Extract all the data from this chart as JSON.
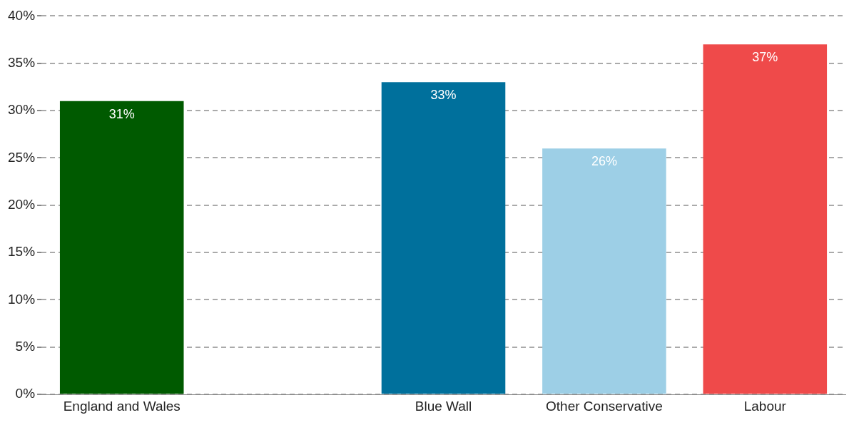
{
  "chart_data": {
    "type": "bar",
    "categories": [
      "England and Wales",
      null,
      "Blue Wall",
      "Other Conservative",
      "Labour"
    ],
    "values": [
      31,
      null,
      33,
      26,
      37
    ],
    "colors": [
      "#005a00",
      "#ffffff",
      "#00709c",
      "#9dcfe6",
      "#ef4a4a"
    ],
    "ylim": [
      0,
      40
    ],
    "yticks": [
      {
        "value": 0,
        "label": "0%"
      },
      {
        "value": 5,
        "label": "5%"
      },
      {
        "value": 10,
        "label": "10%"
      },
      {
        "value": 15,
        "label": "15%"
      },
      {
        "value": 20,
        "label": "20%"
      },
      {
        "value": 25,
        "label": "25%"
      },
      {
        "value": 30,
        "label": "30%"
      },
      {
        "value": 35,
        "label": "35%"
      },
      {
        "value": 40,
        "label": "40%"
      }
    ],
    "value_labels": [
      "31%",
      null,
      "33%",
      "26%",
      "37%"
    ],
    "grid": "y",
    "legend": false
  }
}
